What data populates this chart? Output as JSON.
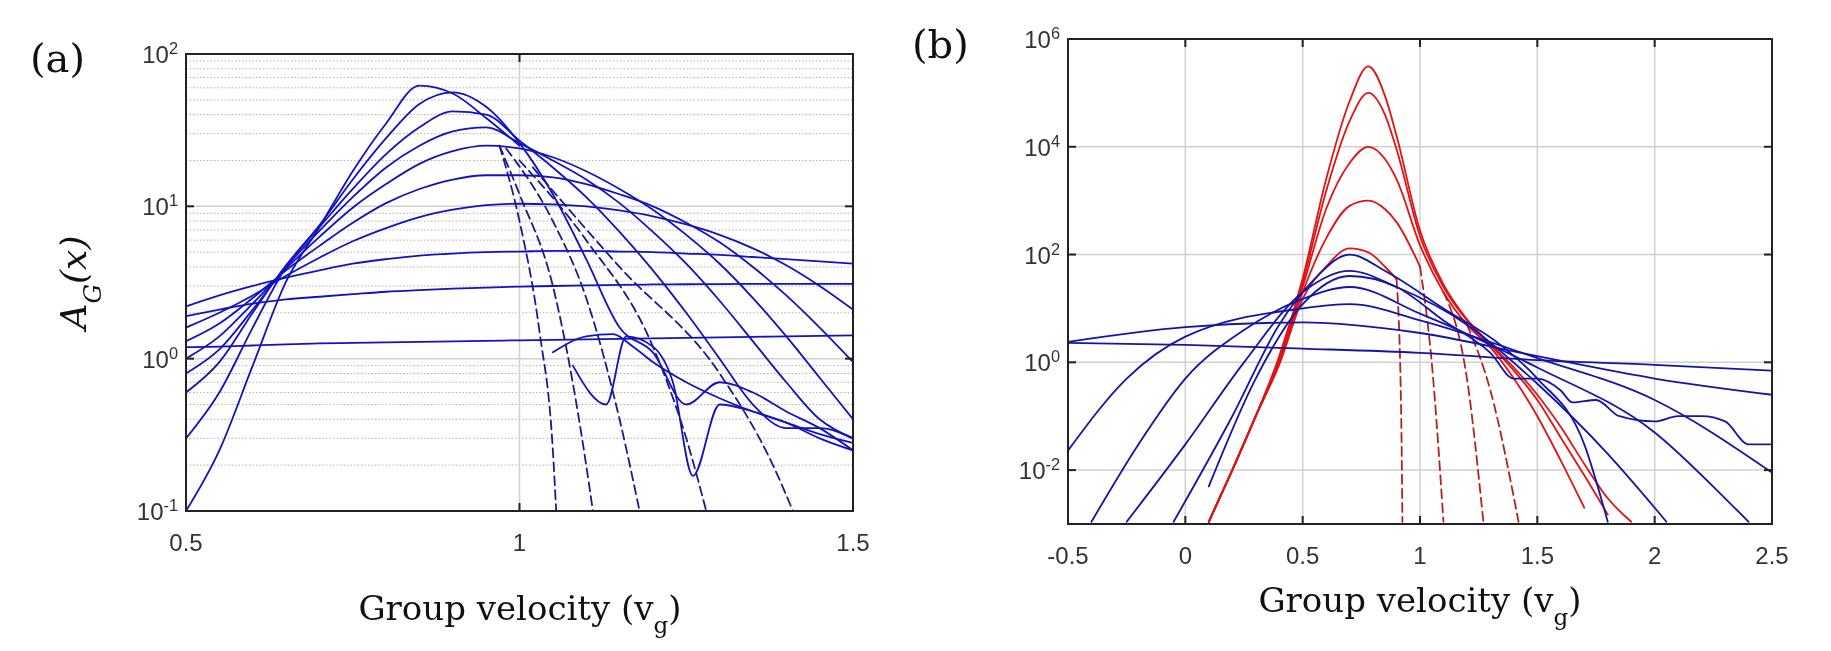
{
  "chart_data": [
    {
      "type": "line",
      "title": "(a)",
      "xlabel": "Group velocity (v$_{g}$)",
      "ylabel": "A$_{G}$(x)",
      "log": "y",
      "grid": true,
      "xlim": [
        0.5,
        1.5
      ],
      "xticks": [
        0.5,
        1,
        1.5
      ],
      "ylim": [
        0.1,
        100
      ],
      "yticks": [
        {
          "value": 0.1,
          "label": "10$^{-1}$"
        },
        {
          "value": 1,
          "label": "10$^{0}$"
        },
        {
          "value": 10,
          "label": "10$^{1}$"
        },
        {
          "value": 100,
          "label": "10$^{2}$"
        }
      ],
      "x": [
        0.5,
        0.55,
        0.6,
        0.65,
        0.7,
        0.75,
        0.8,
        0.85,
        0.9,
        0.95,
        1.0,
        1.05,
        1.1,
        1.15,
        1.2,
        1.25,
        1.3,
        1.35,
        1.4,
        1.45,
        1.5
      ],
      "series": [
        {
          "color": "#1212c4",
          "values": [
            1.19,
            1.2,
            1.22,
            1.24,
            1.26,
            1.27,
            1.28,
            1.29,
            1.3,
            1.31,
            1.32,
            1.33,
            1.34,
            1.35,
            1.36,
            1.37,
            1.38,
            1.39,
            1.4,
            1.41,
            1.42
          ]
        },
        {
          "color": "#1212c4",
          "values": [
            1.9,
            2.1,
            2.3,
            2.45,
            2.55,
            2.65,
            2.75,
            2.82,
            2.88,
            2.93,
            2.97,
            3.0,
            3.03,
            3.05,
            3.07,
            3.08,
            3.09,
            3.1,
            3.1,
            3.1,
            3.1
          ]
        },
        {
          "color": "#1212c4",
          "values": [
            2.2,
            2.6,
            3.0,
            3.4,
            3.8,
            4.2,
            4.5,
            4.75,
            4.9,
            5.0,
            5.05,
            5.1,
            5.1,
            5.05,
            5.0,
            4.9,
            4.8,
            4.65,
            4.5,
            4.35,
            4.2
          ]
        },
        {
          "color": "#1212c4",
          "values": [
            1.6,
            2.0,
            2.6,
            3.5,
            4.6,
            5.9,
            7.2,
            8.5,
            9.5,
            10.2,
            10.4,
            10.3,
            10,
            9.4,
            8.6,
            7.6,
            6.5,
            5.3,
            4.1,
            3.0,
            2.1
          ]
        },
        {
          "color": "#1212c4",
          "values": [
            1.3,
            1.7,
            2.5,
            3.8,
            5.5,
            7.8,
            10.5,
            13,
            15,
            16,
            16,
            15.5,
            14,
            12,
            10,
            7.8,
            5.8,
            4.0,
            2.6,
            1.6,
            0.95
          ]
        },
        {
          "color": "#1212c4",
          "values": [
            1.0,
            1.4,
            2.3,
            3.9,
            6.3,
            9.8,
            14,
            19,
            23,
            25,
            24,
            21,
            17,
            13,
            9.5,
            6.5,
            4.2,
            2.5,
            1.4,
            0.75,
            0.4
          ]
        },
        {
          "color": "#1212c4",
          "values": [
            0.8,
            1.15,
            2.1,
            4.0,
            6.9,
            11.5,
            18,
            25,
            31,
            33,
            26,
            20,
            15,
            10.5,
            6.8,
            4.2,
            2.4,
            1.3,
            0.7,
            0.4,
            0.3
          ]
        },
        {
          "color": "#1212c4",
          "values": [
            0.6,
            0.95,
            2.0,
            4.1,
            7.3,
            13,
            22,
            33,
            42,
            40,
            27,
            18,
            11.5,
            6.8,
            3.8,
            2.0,
            1.0,
            0.5,
            0.35,
            0.35,
            0.3
          ]
        },
        {
          "color": "#1212c4",
          "values": [
            0.3,
            0.6,
            1.6,
            4.0,
            7.5,
            15,
            28,
            47,
            56,
            45,
            26,
            12,
            4.5,
            1.6,
            1.1,
            0.5,
            0.7,
            0.6,
            0.45,
            0.35,
            0.25
          ]
        },
        {
          "color": "#1212c4",
          "values": [
            0.1,
            0.25,
            0.9,
            3.2,
            7.3,
            17,
            35,
            62,
            55,
            38,
            25,
            null,
            null,
            null,
            null,
            null,
            null,
            null,
            null,
            null,
            null
          ]
        },
        {
          "color": "#1212c4",
          "x": [
            1.05,
            1.1,
            1.14,
            1.17,
            1.2,
            1.25,
            1.3,
            1.35,
            1.4,
            1.45,
            1.5
          ],
          "values": [
            1.1,
            1.4,
            1.45,
            1.2,
            0.95,
            0.7,
            0.55,
            0.45,
            0.38,
            0.32,
            0.28
          ]
        },
        {
          "color": "#1212c4",
          "x": [
            1.08,
            1.13,
            1.16,
            1.2,
            1.23,
            1.26,
            1.3,
            1.35,
            1.4,
            1.45,
            1.5
          ],
          "values": [
            0.9,
            0.5,
            1.4,
            1.2,
            0.7,
            0.17,
            0.5,
            0.45,
            0.38,
            0.3,
            0.25
          ]
        },
        {
          "color": "#1a1a90",
          "line_style": "dashed",
          "x": [
            0.97,
            1.0,
            1.03,
            1.05,
            1.055
          ],
          "values": [
            25,
            8,
            1.5,
            0.25,
            0.1
          ]
        },
        {
          "color": "#1a1a90",
          "line_style": "dashed",
          "x": [
            0.97,
            1.0,
            1.05,
            1.1,
            1.11
          ],
          "values": [
            25,
            12,
            3,
            0.2,
            0.1
          ]
        },
        {
          "color": "#1a1a90",
          "line_style": "dashed",
          "x": [
            0.98,
            1.05,
            1.1,
            1.15,
            1.18
          ],
          "values": [
            24,
            8,
            2.5,
            0.4,
            0.1
          ]
        },
        {
          "color": "#1a1a90",
          "line_style": "dashed",
          "x": [
            1.0,
            1.1,
            1.2,
            1.25,
            1.28
          ],
          "values": [
            20,
            6,
            1.2,
            0.3,
            0.1
          ]
        },
        {
          "color": "#1a1a90",
          "line_style": "dashed",
          "x": [
            1.02,
            1.15,
            1.3,
            1.38,
            1.41
          ],
          "values": [
            18,
            4,
            0.8,
            0.2,
            0.1
          ]
        }
      ]
    },
    {
      "type": "line",
      "title": "(b)",
      "xlabel": "Group velocity (v$_{g}$)",
      "log": "y",
      "grid": true,
      "xlim": [
        -0.5,
        2.5
      ],
      "xticks": [
        -0.5,
        0,
        0.5,
        1,
        1.5,
        2,
        2.5
      ],
      "ylim": [
        0.001,
        1000000
      ],
      "yticks": [
        {
          "value": 0.01,
          "label": "10$^{-2}$"
        },
        {
          "value": 1,
          "label": "10$^{0}$"
        },
        {
          "value": 100,
          "label": "10$^{2}$"
        },
        {
          "value": 10000,
          "label": "10$^{4}$"
        },
        {
          "value": 1000000,
          "label": "10$^{6}$"
        }
      ],
      "x": [
        0.1,
        0.2,
        0.3,
        0.4,
        0.5,
        0.6,
        0.7,
        0.78,
        0.85,
        0.9,
        1.0,
        1.1,
        1.2,
        1.3,
        1.4,
        1.5,
        1.6,
        1.7,
        1.8,
        1.9
      ],
      "series": [
        {
          "color": "#e01414",
          "values": [
            0.0011,
            0.01,
            0.1,
            1.3,
            36,
            2500,
            70000,
            310000,
            90000,
            16000,
            280,
            28,
            6.3,
            2.2,
            0.8,
            0.25,
            0.063,
            0.013,
            0.003,
            0.0011
          ]
        },
        {
          "color": "#e01414",
          "values": [
            0.0011,
            0.01,
            0.1,
            1.2,
            30,
            1500,
            30000,
            100000,
            40000,
            9000,
            220,
            25,
            6,
            2.1,
            0.7,
            0.2,
            0.04,
            0.008,
            0.0015,
            null
          ]
        },
        {
          "color": "#e01414",
          "values": [
            0.0011,
            0.01,
            0.1,
            1.1,
            25,
            700,
            5000,
            10000,
            6000,
            2500,
            150,
            20,
            5,
            1.9,
            0.5,
            0.1,
            0.015,
            0.002,
            null,
            null
          ]
        },
        {
          "color": "#e01414",
          "values": [
            0.0011,
            0.01,
            0.1,
            1.0,
            20,
            200,
            800,
            1000,
            700,
            400,
            60,
            null,
            null,
            null,
            null,
            null,
            null,
            null,
            null,
            null
          ]
        },
        {
          "color": "#e01414",
          "values": [
            0.0011,
            0.01,
            0.1,
            0.9,
            15,
            60,
            130,
            110,
            60,
            35,
            null,
            null,
            null,
            null,
            null,
            null,
            null,
            null,
            null,
            null
          ]
        },
        {
          "color": "#b42020",
          "line_style": "dashed",
          "x": [
            0.9,
            0.92,
            0.925
          ],
          "values": [
            35,
            0.1,
            0.0011
          ]
        },
        {
          "color": "#b42020",
          "line_style": "dashed",
          "x": [
            1.0,
            1.05,
            1.1
          ],
          "values": [
            60,
            1,
            0.0011
          ]
        },
        {
          "color": "#b42020",
          "line_style": "dashed",
          "x": [
            1.1,
            1.2,
            1.27
          ],
          "values": [
            20,
            0.5,
            0.0011
          ]
        },
        {
          "color": "#b42020",
          "line_style": "dashed",
          "x": [
            1.2,
            1.3,
            1.42
          ],
          "values": [
            5,
            0.3,
            0.0011
          ]
        },
        {
          "color": "#1414a8",
          "x": [
            -0.5,
            0,
            0.5,
            1,
            1.5,
            2,
            2.5
          ],
          "values": [
            2.3,
            2.1,
            1.8,
            1.5,
            1.1,
            0.9,
            0.7
          ]
        },
        {
          "color": "#1414a8",
          "x": [
            -0.5,
            0,
            0.5,
            1,
            1.5,
            2,
            2.5
          ],
          "values": [
            2.4,
            4.5,
            5.5,
            3.5,
            1.3,
            0.5,
            0.25
          ]
        },
        {
          "color": "#1414a8",
          "x": [
            -0.5,
            -0.25,
            0,
            0.5,
            0.7,
            1,
            1.5,
            2,
            2.5
          ],
          "values": [
            0.023,
            0.5,
            3,
            10,
            12,
            6,
            1.2,
            0.2,
            0.009
          ]
        },
        {
          "color": "#1414a8",
          "x": [
            -0.4,
            -0.2,
            0,
            0.25,
            0.5,
            0.7,
            1,
            1.5,
            2,
            2.3,
            2.4
          ],
          "values": [
            0.0011,
            0.03,
            0.5,
            4,
            15,
            25,
            8,
            0.8,
            0.05,
            0.003,
            0.0011
          ]
        },
        {
          "color": "#1414a8",
          "x": [
            -0.25,
            0,
            0.25,
            0.5,
            0.7,
            0.9,
            1.2,
            1.5,
            1.8,
            2.0,
            2.05
          ],
          "values": [
            0.0011,
            0.03,
            1,
            20,
            50,
            25,
            5,
            0.4,
            0.02,
            0.002,
            0.0011
          ]
        },
        {
          "color": "#1414a8",
          "x": [
            -0.05,
            0.2,
            0.4,
            0.55,
            0.7,
            0.85,
            1.1,
            1.35,
            1.5,
            1.7,
            1.8
          ],
          "values": [
            0.0011,
            0.1,
            5,
            35,
            100,
            50,
            10,
            2,
            0.5,
            0.03,
            0.0011
          ]
        },
        {
          "color": "#1414a8",
          "x": [
            0.1,
            0.3,
            0.5,
            0.7,
            0.9,
            1.1,
            1.3,
            1.4,
            1.5,
            1.6,
            1.65,
            1.75,
            1.85,
            2.0,
            2.1,
            2.2,
            2.3,
            2.4,
            2.5
          ],
          "values": [
            0.005,
            0.5,
            12,
            40,
            25,
            6,
            1.5,
            0.5,
            0.5,
            0.3,
            0.18,
            0.2,
            0.1,
            0.08,
            0.1,
            0.1,
            0.08,
            0.03,
            0.03
          ]
        }
      ]
    }
  ]
}
